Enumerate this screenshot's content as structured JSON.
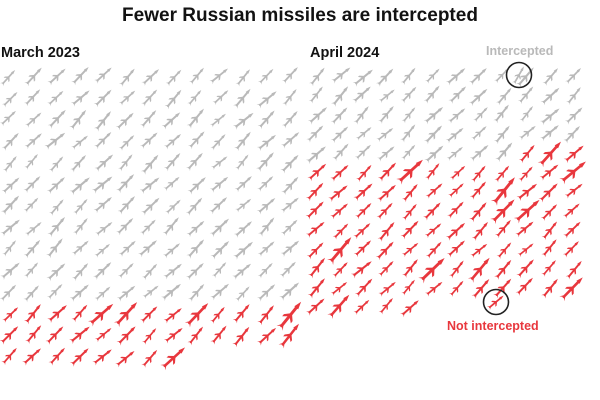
{
  "chart_data": {
    "type": "unit-icon-grid",
    "title": "Fewer Russian missiles are intercepted",
    "colors": {
      "intercepted": "#b9b9b9",
      "not_intercepted": "#e8373d",
      "text": "#121212",
      "outline": "#222222"
    },
    "legend": {
      "intercepted": "Intercepted",
      "not_intercepted": "Not intercepted"
    },
    "panels": [
      {
        "title": "March 2023",
        "intercepted": 143,
        "not_intercepted": 34
      },
      {
        "title": "April 2024",
        "intercepted": 57,
        "not_intercepted": 92
      }
    ]
  }
}
